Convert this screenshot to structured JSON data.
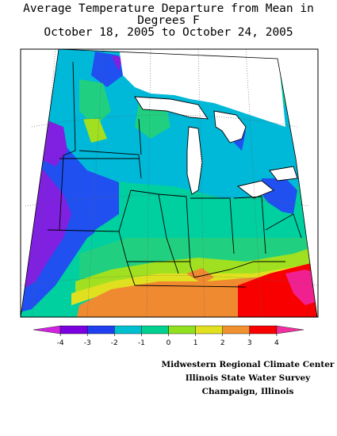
{
  "title": {
    "line1": "Average Temperature Departure from Mean in Degrees F",
    "line2": "October 18, 2005 to October 24, 2005"
  },
  "legend": {
    "ticks": [
      "-4",
      "-3",
      "-2",
      "-1",
      "0",
      "1",
      "2",
      "3",
      "4"
    ],
    "colors": [
      "#d024e0",
      "#7a00e0",
      "#2040f0",
      "#00c0d0",
      "#00d090",
      "#90e020",
      "#e0e020",
      "#f09030",
      "#f80000",
      "#f030a0"
    ]
  },
  "credits": {
    "line1": "Midwestern Regional Climate Center",
    "line2": "Illinois State Water Survey",
    "line3": "Champaign, Illinois"
  },
  "map": {
    "region": "Upper Midwest and Great Lakes",
    "colors": {
      "minus4_below": "#8020e0",
      "minus3": "#2050f0",
      "minus2": "#00b8d8",
      "minus1": "#00d0a0",
      "zero": "#20d080",
      "plus1": "#a0e020",
      "plus2": "#e0e020",
      "plus3": "#f08a30",
      "plus4": "#f80000",
      "above4": "#f02090",
      "lake": "#ffffff",
      "border": "#000000",
      "graticule": "#606060"
    }
  }
}
